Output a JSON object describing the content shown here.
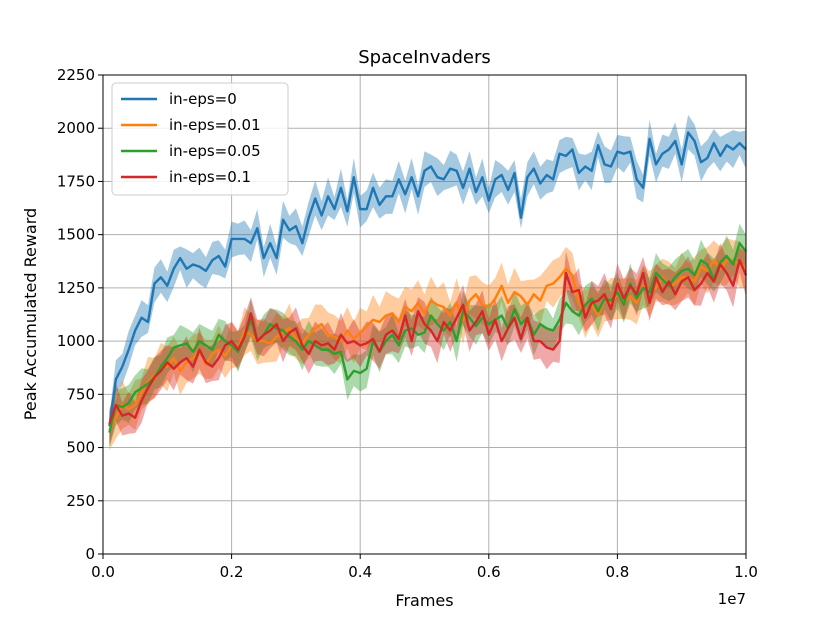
{
  "chart_data": {
    "type": "line",
    "title": "SpaceInvaders",
    "xlabel": "Frames",
    "ylabel": "Peak Accumulated Reward",
    "x_multiplier_label": "1e7",
    "xlim": [
      0,
      1.0
    ],
    "ylim": [
      0,
      2250
    ],
    "xticks": [
      0.0,
      0.2,
      0.4,
      0.6,
      0.8,
      1.0
    ],
    "xtick_labels": [
      "0.0",
      "0.2",
      "0.4",
      "0.6",
      "0.8",
      "1.0"
    ],
    "yticks": [
      0,
      250,
      500,
      750,
      1000,
      1250,
      1500,
      1750,
      2000,
      2250
    ],
    "ytick_labels": [
      "0",
      "250",
      "500",
      "750",
      "1000",
      "1250",
      "1500",
      "1750",
      "2000",
      "2250"
    ],
    "grid": true,
    "legend_position": "upper-left",
    "x": [
      0.01,
      0.02,
      0.03,
      0.04,
      0.05,
      0.06,
      0.07,
      0.08,
      0.09,
      0.1,
      0.11,
      0.12,
      0.13,
      0.14,
      0.15,
      0.16,
      0.17,
      0.18,
      0.19,
      0.2,
      0.21,
      0.22,
      0.23,
      0.24,
      0.25,
      0.26,
      0.27,
      0.28,
      0.29,
      0.3,
      0.31,
      0.32,
      0.33,
      0.34,
      0.35,
      0.36,
      0.37,
      0.38,
      0.39,
      0.4,
      0.41,
      0.42,
      0.43,
      0.44,
      0.45,
      0.46,
      0.47,
      0.48,
      0.49,
      0.5,
      0.51,
      0.52,
      0.53,
      0.54,
      0.55,
      0.56,
      0.57,
      0.58,
      0.59,
      0.6,
      0.61,
      0.62,
      0.63,
      0.64,
      0.65,
      0.66,
      0.67,
      0.68,
      0.69,
      0.7,
      0.71,
      0.72,
      0.73,
      0.74,
      0.75,
      0.76,
      0.77,
      0.78,
      0.79,
      0.8,
      0.81,
      0.82,
      0.83,
      0.84,
      0.85,
      0.86,
      0.87,
      0.88,
      0.89,
      0.9,
      0.91,
      0.92,
      0.93,
      0.94,
      0.95,
      0.96,
      0.97,
      0.98,
      0.99,
      1.0
    ],
    "series": [
      {
        "name": "in-eps=0",
        "color": "#1f77b4",
        "band": 70,
        "values": [
          600,
          820,
          880,
          960,
          1050,
          1110,
          1090,
          1270,
          1300,
          1260,
          1340,
          1390,
          1340,
          1360,
          1350,
          1330,
          1380,
          1400,
          1350,
          1480,
          1480,
          1480,
          1460,
          1530,
          1390,
          1460,
          1390,
          1570,
          1520,
          1540,
          1460,
          1580,
          1670,
          1590,
          1680,
          1620,
          1720,
          1610,
          1770,
          1620,
          1620,
          1720,
          1640,
          1680,
          1680,
          1760,
          1690,
          1770,
          1680,
          1800,
          1820,
          1770,
          1760,
          1810,
          1800,
          1720,
          1810,
          1700,
          1770,
          1660,
          1760,
          1780,
          1710,
          1790,
          1580,
          1770,
          1810,
          1740,
          1780,
          1760,
          1880,
          1870,
          1900,
          1790,
          1820,
          1800,
          1920,
          1830,
          1820,
          1890,
          1880,
          1890,
          1760,
          1720,
          1950,
          1830,
          1880,
          1900,
          1940,
          1830,
          1980,
          1940,
          1840,
          1860,
          1930,
          1870,
          1920,
          1900,
          1930,
          1900
        ]
      },
      {
        "name": "in-eps=0.01",
        "color": "#ff7f0e",
        "band": 90,
        "values": [
          580,
          640,
          700,
          680,
          700,
          760,
          810,
          840,
          880,
          880,
          920,
          860,
          900,
          920,
          960,
          890,
          940,
          960,
          930,
          980,
          960,
          1050,
          1030,
          1000,
          1000,
          990,
          1020,
          1040,
          1060,
          1010,
          990,
          1030,
          1060,
          1080,
          1030,
          1020,
          1000,
          1050,
          1010,
          1040,
          1070,
          1100,
          1090,
          1120,
          1130,
          1090,
          1160,
          1140,
          1180,
          1130,
          1190,
          1170,
          1160,
          1120,
          1180,
          1100,
          1190,
          1220,
          1170,
          1160,
          1200,
          1260,
          1180,
          1230,
          1210,
          1170,
          1220,
          1190,
          1260,
          1270,
          1300,
          1340,
          1310,
          1180,
          1130,
          1170,
          1120,
          1200,
          1180,
          1220,
          1180,
          1210,
          1180,
          1260,
          1230,
          1250,
          1300,
          1260,
          1270,
          1300,
          1300,
          1280,
          1350,
          1330,
          1380,
          1340,
          1380,
          1380,
          1360,
          1350
        ]
      },
      {
        "name": "in-eps=0.05",
        "color": "#2ca02c",
        "band": 75,
        "values": [
          570,
          700,
          690,
          710,
          760,
          780,
          800,
          830,
          880,
          920,
          970,
          980,
          990,
          950,
          1000,
          980,
          960,
          1030,
          1000,
          980,
          950,
          1020,
          1100,
          1000,
          1030,
          1080,
          1060,
          1050,
          1020,
          1000,
          960,
          1000,
          980,
          960,
          960,
          940,
          950,
          820,
          860,
          850,
          870,
          1000,
          950,
          1000,
          1030,
          980,
          1050,
          1060,
          1030,
          1040,
          1120,
          1080,
          1050,
          1090,
          1000,
          1140,
          1110,
          1070,
          1110,
          1080,
          1100,
          1120,
          1060,
          1150,
          1080,
          1110,
          1030,
          1080,
          1060,
          1050,
          1100,
          1180,
          1140,
          1120,
          1170,
          1200,
          1140,
          1200,
          1190,
          1230,
          1170,
          1270,
          1200,
          1250,
          1230,
          1320,
          1290,
          1260,
          1300,
          1330,
          1340,
          1310,
          1380,
          1360,
          1290,
          1370,
          1400,
          1360,
          1460,
          1420
        ]
      },
      {
        "name": "in-eps=0.1",
        "color": "#d62728",
        "band": 80,
        "values": [
          610,
          700,
          650,
          660,
          640,
          720,
          780,
          830,
          860,
          900,
          870,
          900,
          920,
          880,
          960,
          900,
          880,
          920,
          980,
          1000,
          960,
          1020,
          1130,
          1000,
          1030,
          1050,
          1080,
          1000,
          1040,
          1060,
          980,
          940,
          1000,
          980,
          990,
          960,
          1030,
          990,
          1000,
          980,
          990,
          1010,
          950,
          1030,
          1050,
          1010,
          1120,
          1000,
          1140,
          1080,
          1050,
          1000,
          1090,
          1050,
          1110,
          1170,
          1050,
          1090,
          1140,
          1030,
          1100,
          1000,
          1060,
          1110,
          1010,
          1110,
          1000,
          1000,
          970,
          960,
          1000,
          1320,
          1230,
          1240,
          1110,
          1180,
          1190,
          1220,
          1150,
          1270,
          1200,
          1260,
          1220,
          1320,
          1180,
          1300,
          1230,
          1280,
          1220,
          1280,
          1300,
          1240,
          1270,
          1320,
          1280,
          1360,
          1320,
          1260,
          1380,
          1310
        ]
      }
    ]
  }
}
